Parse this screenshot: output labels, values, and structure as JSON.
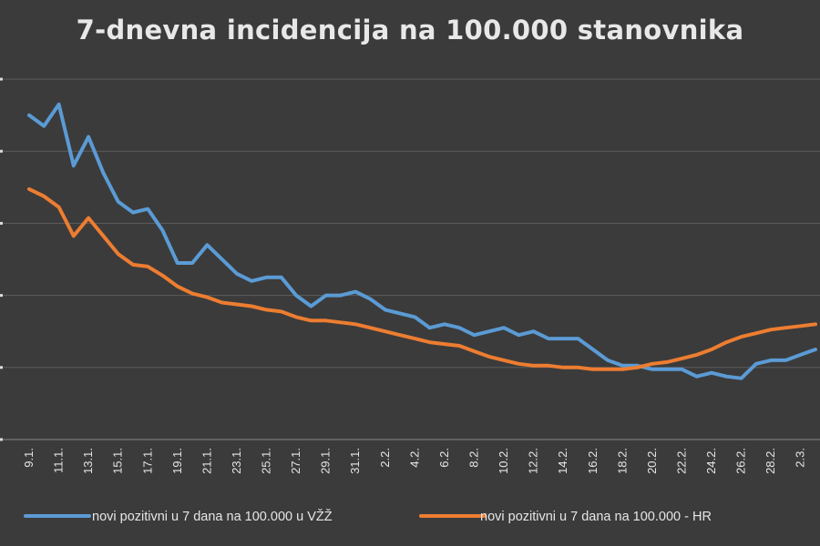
{
  "chart_data": {
    "type": "line",
    "title": "7-dnevna incidencija na 100.000 stanovnika",
    "xlabel": "",
    "ylabel": "",
    "grid": true,
    "legend_position": "bottom",
    "x": [
      "9.1.",
      "10.1.",
      "11.1.",
      "12.1.",
      "13.1.",
      "14.1.",
      "15.1.",
      "16.1.",
      "17.1.",
      "18.1.",
      "19.1.",
      "20.1.",
      "21.1.",
      "22.1.",
      "23.1.",
      "24.1.",
      "25.1.",
      "26.1.",
      "27.1.",
      "28.1.",
      "29.1.",
      "30.1.",
      "31.1.",
      "1.2.",
      "2.2.",
      "3.2.",
      "4.2.",
      "5.2.",
      "6.2.",
      "7.2.",
      "8.2.",
      "9.2.",
      "10.2.",
      "11.2.",
      "12.2.",
      "13.2.",
      "14.2.",
      "15.2.",
      "16.2.",
      "17.2.",
      "18.2.",
      "19.2.",
      "20.2.",
      "21.2.",
      "22.2.",
      "23.2.",
      "24.2.",
      "25.2.",
      "26.2.",
      "27.2.",
      "28.2.",
      "1.3.",
      "2.3.",
      "3.3."
    ],
    "tick_labels": [
      "9.1.",
      "11.1.",
      "13.1.",
      "15.1.",
      "17.1.",
      "19.1.",
      "21.1.",
      "23.1.",
      "25.1.",
      "27.1.",
      "29.1.",
      "31.1.",
      "2.2.",
      "4.2.",
      "6.2.",
      "8.2.",
      "10.2.",
      "12.2.",
      "14.2.",
      "16.2.",
      "18.2.",
      "20.2.",
      "22.2.",
      "24.2.",
      "26.2.",
      "28.2.",
      "2.3."
    ],
    "ylim": [
      0,
      100
    ],
    "series": [
      {
        "name": "novi pozitivni u 7 dana na 100.000 u VŽŽ",
        "color": "#5b9bd5",
        "values": [
          90,
          87,
          93,
          76,
          84,
          74,
          66,
          63,
          64,
          58,
          49,
          49,
          54,
          50,
          46,
          44,
          45,
          45,
          40,
          37,
          40,
          40,
          41,
          39,
          36,
          35,
          34,
          31,
          32,
          31,
          29,
          30,
          31,
          29,
          30,
          28,
          28,
          28,
          25,
          22,
          20.5,
          20.5,
          19.5,
          19.5,
          19.5,
          17.5,
          18.5,
          17.5,
          17,
          21,
          22,
          22,
          23.5,
          25
        ]
      },
      {
        "name": "novi pozitivni u 7 dana na 100.000 - HR",
        "color": "#ed7d31",
        "values": [
          69.5,
          67.5,
          64.5,
          56.5,
          61.5,
          56.5,
          51.5,
          48.5,
          48,
          45.5,
          42.5,
          40.5,
          39.5,
          38,
          37.5,
          37,
          36,
          35.5,
          34,
          33,
          33,
          32.5,
          32,
          31,
          30,
          29,
          28,
          27,
          26.5,
          26,
          24.5,
          23,
          22,
          21,
          20.5,
          20.5,
          20,
          20,
          19.5,
          19.5,
          19.5,
          20,
          21,
          21.5,
          22.5,
          23.5,
          25,
          27,
          28.5,
          29.5,
          30.5,
          31,
          31.5,
          32
        ]
      }
    ]
  }
}
